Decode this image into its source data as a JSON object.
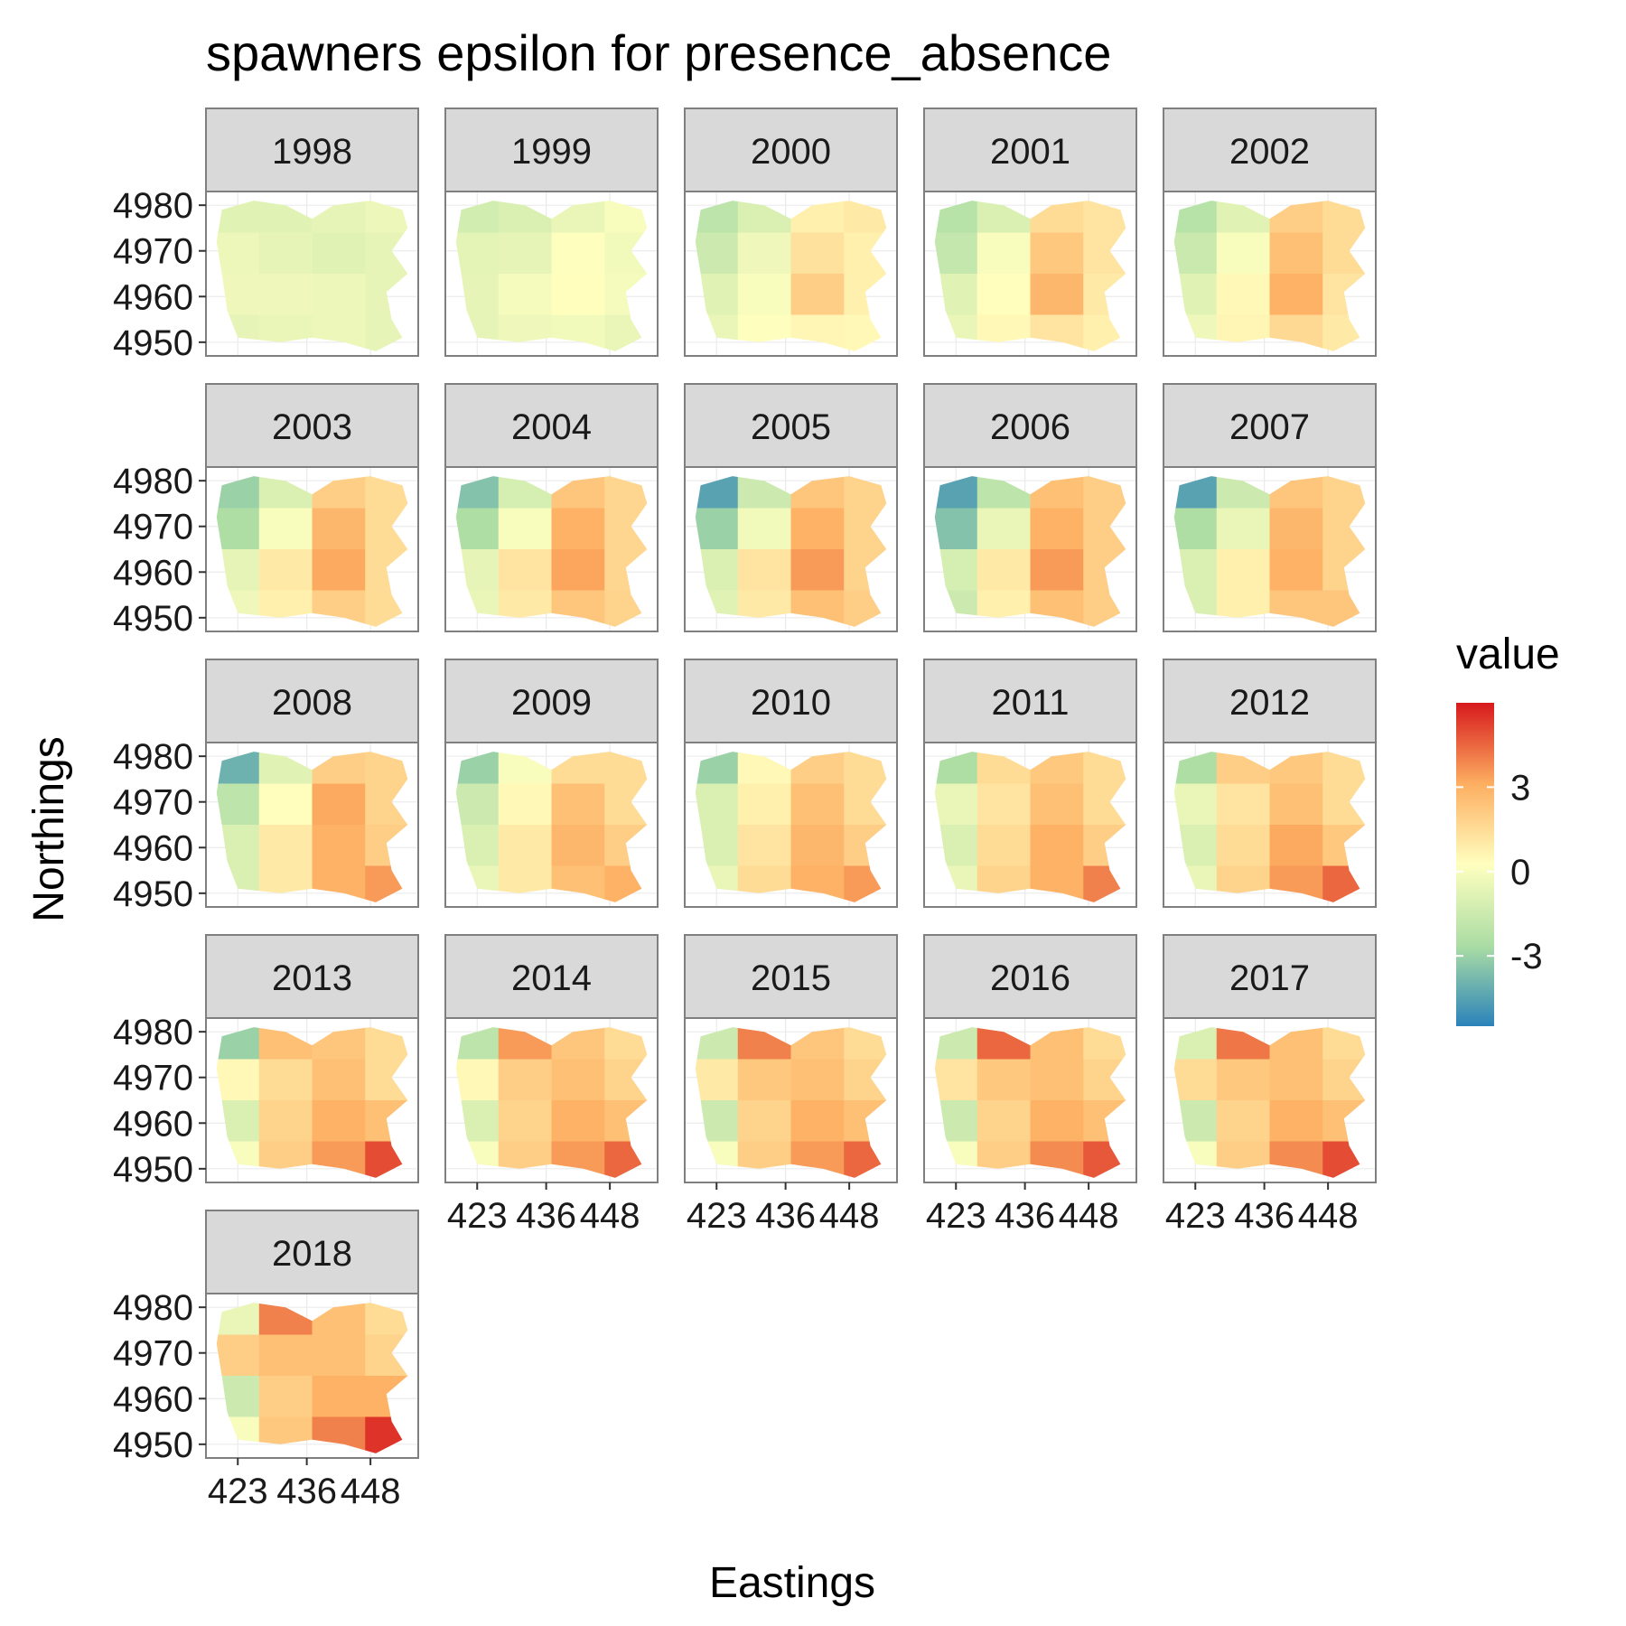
{
  "chart_data": {
    "type": "heatmap",
    "title": "spawners epsilon for presence_absence",
    "xlabel": "Eastings",
    "ylabel": "Northings",
    "facet_variable": "year",
    "facets": [
      "1998",
      "1999",
      "2000",
      "2001",
      "2002",
      "2003",
      "2004",
      "2005",
      "2006",
      "2007",
      "2008",
      "2009",
      "2010",
      "2011",
      "2012",
      "2013",
      "2014",
      "2015",
      "2016",
      "2017",
      "2018"
    ],
    "facet_columns": 5,
    "x_ticks": [
      423,
      436,
      448
    ],
    "y_ticks": [
      4950,
      4960,
      4970,
      4980
    ],
    "xlim": [
      417,
      457
    ],
    "ylim": [
      4947,
      4983
    ],
    "legend": {
      "title": "value",
      "position": "right",
      "breaks": [
        3,
        0,
        -3
      ],
      "range": [
        -5.5,
        6
      ],
      "colors": [
        "#2b83ba",
        "#abdda4",
        "#ffffbf",
        "#fdae61",
        "#d7191c"
      ]
    },
    "panels": [
      {
        "facet": "1998",
        "values": [
          -0.8,
          -0.8,
          -0.6,
          -0.4,
          -0.4,
          -0.6,
          -0.8,
          -0.6,
          -0.3,
          -0.3,
          -0.4,
          -0.6,
          -0.6,
          -0.5,
          -0.4,
          -0.6
        ]
      },
      {
        "facet": "1999",
        "values": [
          -1.3,
          -1.0,
          -0.5,
          0.0,
          -0.7,
          -0.6,
          0.2,
          -0.2,
          -0.6,
          -0.1,
          0.3,
          -0.1,
          -0.6,
          -0.3,
          -0.2,
          -0.5
        ]
      },
      {
        "facet": "2000",
        "values": [
          -2.0,
          -1.0,
          0.8,
          1.0,
          -1.5,
          -0.3,
          1.3,
          0.8,
          -0.8,
          0.0,
          2.0,
          0.8,
          -0.5,
          0.2,
          0.6,
          0.5
        ]
      },
      {
        "facet": "2001",
        "values": [
          -2.2,
          -1.0,
          1.5,
          1.2,
          -1.8,
          0.0,
          2.2,
          1.2,
          -0.8,
          0.3,
          2.8,
          1.0,
          -0.5,
          0.5,
          1.2,
          0.8
        ]
      },
      {
        "facet": "2002",
        "values": [
          -2.2,
          -0.8,
          2.0,
          1.5,
          -1.6,
          0.0,
          2.5,
          1.5,
          -0.8,
          0.5,
          3.0,
          1.2,
          -0.3,
          0.6,
          1.6,
          1.0
        ]
      },
      {
        "facet": "2003",
        "values": [
          -3.0,
          -1.0,
          2.0,
          1.5,
          -2.5,
          0.0,
          2.8,
          1.5,
          -0.6,
          1.0,
          3.2,
          1.5,
          -0.3,
          0.8,
          2.0,
          1.5
        ]
      },
      {
        "facet": "2004",
        "values": [
          -3.5,
          -1.2,
          2.3,
          1.7,
          -2.5,
          0.0,
          3.0,
          1.7,
          -0.6,
          1.2,
          3.3,
          1.7,
          -0.5,
          1.0,
          2.3,
          1.8
        ]
      },
      {
        "facet": "2005",
        "values": [
          -4.5,
          -1.5,
          2.3,
          1.8,
          -3.0,
          -0.2,
          3.0,
          1.8,
          -1.0,
          1.2,
          3.5,
          1.8,
          -0.8,
          1.0,
          2.5,
          2.0
        ]
      },
      {
        "facet": "2006",
        "values": [
          -4.5,
          -2.0,
          2.5,
          2.0,
          -3.5,
          -0.5,
          3.0,
          2.0,
          -1.2,
          1.0,
          3.5,
          2.0,
          -1.5,
          0.8,
          2.5,
          2.0
        ]
      },
      {
        "facet": "2007",
        "values": [
          -4.5,
          -1.5,
          2.3,
          1.8,
          -2.5,
          -0.5,
          2.8,
          1.8,
          -1.0,
          0.8,
          3.0,
          1.8,
          -1.0,
          0.8,
          2.3,
          2.3
        ]
      },
      {
        "facet": "2008",
        "values": [
          -4.0,
          -0.8,
          2.0,
          1.8,
          -2.0,
          0.3,
          3.2,
          1.8,
          -1.0,
          1.0,
          3.0,
          2.0,
          -1.0,
          1.0,
          3.0,
          3.5
        ]
      },
      {
        "facet": "2009",
        "values": [
          -3.0,
          0.0,
          1.5,
          1.5,
          -1.5,
          0.5,
          2.5,
          1.5,
          -1.0,
          1.0,
          2.8,
          2.0,
          -0.5,
          1.0,
          2.5,
          3.0
        ]
      },
      {
        "facet": "2010",
        "values": [
          -3.0,
          0.5,
          2.0,
          1.5,
          -1.0,
          0.8,
          2.5,
          1.5,
          -1.0,
          1.2,
          2.8,
          2.0,
          -0.5,
          1.5,
          3.0,
          3.5
        ]
      },
      {
        "facet": "2011",
        "values": [
          -2.5,
          1.5,
          2.2,
          1.5,
          -0.5,
          1.2,
          2.5,
          1.5,
          -1.0,
          1.5,
          3.0,
          2.0,
          -0.5,
          1.8,
          3.0,
          4.0
        ]
      },
      {
        "facet": "2012",
        "values": [
          -2.5,
          2.0,
          2.2,
          1.5,
          -0.5,
          1.2,
          2.5,
          1.5,
          -1.0,
          1.5,
          3.2,
          2.2,
          -0.5,
          1.8,
          3.5,
          4.5
        ]
      },
      {
        "facet": "2013",
        "values": [
          -3.0,
          2.5,
          2.3,
          1.5,
          0.5,
          1.5,
          2.5,
          1.5,
          -1.0,
          1.8,
          3.0,
          2.5,
          0.0,
          2.0,
          3.5,
          5.0
        ]
      },
      {
        "facet": "2014",
        "values": [
          -2.0,
          3.5,
          2.3,
          1.5,
          0.5,
          2.0,
          2.5,
          1.8,
          -1.0,
          1.8,
          3.0,
          2.5,
          0.0,
          2.0,
          3.5,
          4.5
        ]
      },
      {
        "facet": "2015",
        "values": [
          -1.5,
          4.0,
          2.3,
          1.5,
          1.0,
          2.2,
          2.5,
          1.8,
          -1.5,
          1.8,
          3.0,
          2.5,
          0.0,
          2.0,
          3.5,
          4.5
        ]
      },
      {
        "facet": "2016",
        "values": [
          -1.5,
          4.5,
          2.5,
          1.5,
          1.2,
          2.2,
          2.5,
          1.8,
          -1.5,
          1.8,
          3.0,
          2.5,
          0.0,
          2.0,
          3.8,
          4.8
        ]
      },
      {
        "facet": "2017",
        "values": [
          -1.0,
          4.2,
          2.5,
          1.5,
          1.5,
          2.2,
          2.5,
          1.8,
          -1.5,
          1.8,
          3.0,
          2.5,
          0.0,
          2.0,
          3.8,
          5.0
        ]
      },
      {
        "facet": "2018",
        "values": [
          -0.5,
          4.0,
          2.5,
          1.5,
          2.0,
          2.5,
          2.5,
          1.8,
          -1.5,
          2.0,
          3.0,
          3.0,
          0.0,
          2.2,
          4.0,
          5.5
        ]
      }
    ]
  }
}
